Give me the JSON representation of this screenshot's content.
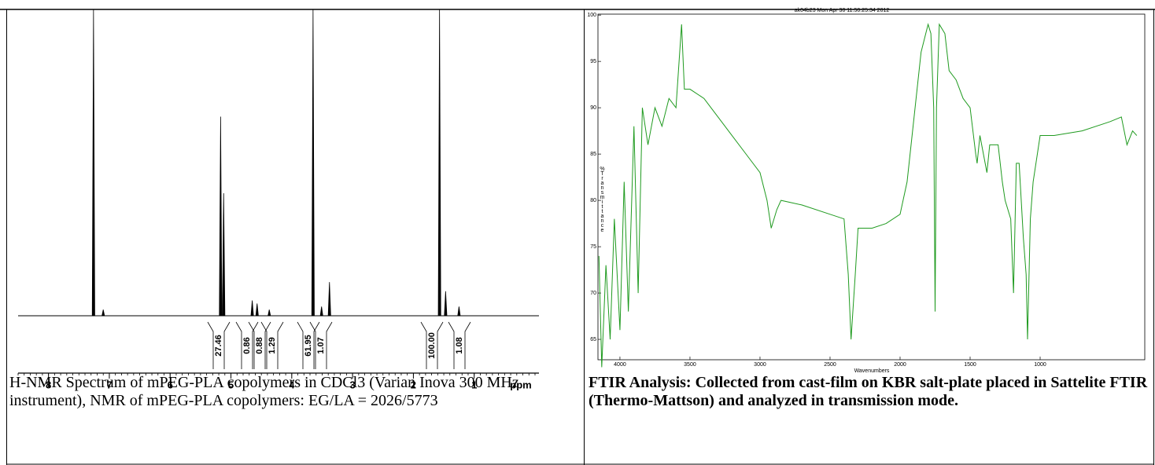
{
  "left": {
    "figure": {
      "type": "nmr",
      "x_label": "ppm",
      "xlim": [
        8.5,
        0
      ],
      "xticks": [
        8,
        7,
        6,
        5,
        4,
        3,
        2,
        1
      ],
      "ylim": [
        0,
        100
      ],
      "color": "#000000",
      "x": [
        7.26,
        7.1,
        5.17,
        5.12,
        4.65,
        4.57,
        4.37,
        3.65,
        3.51,
        3.38,
        1.57,
        1.47,
        1.25
      ],
      "values": [
        100,
        2,
        65,
        40,
        5,
        4,
        2,
        100,
        3,
        11,
        100,
        8,
        3
      ],
      "integrals": [
        "27.46",
        "0.86",
        "0.88",
        "1.29",
        "61.95",
        "1.07",
        "100.00",
        "1.08"
      ]
    },
    "caption": "H-NMR Spectrum of mPEG-PLA copolymers in CDCl3 (Varian Inova 300 MHz instrument), NMR of mPEG-PLA copolymers: EG/LA = 2026/5773"
  },
  "right": {
    "figure": {
      "type": "line",
      "title": "ak04b23   Mon Apr 30 11:50:25:34 2012",
      "x_label": "Wavenumbers",
      "y_label": "%Transmittance",
      "xlim": [
        4157,
        253
      ],
      "xticks": [
        4000,
        3500,
        3000,
        2500,
        2000,
        1500,
        1000
      ],
      "ylim": [
        62.8,
        100.1
      ],
      "yticks": [
        65,
        70,
        75,
        80,
        85,
        90,
        95,
        100
      ],
      "color": "#1f9a1f",
      "x": [
        4150,
        4130,
        4100,
        4070,
        4040,
        4000,
        3970,
        3940,
        3900,
        3870,
        3840,
        3800,
        3750,
        3700,
        3650,
        3600,
        3560,
        3540,
        3500,
        3400,
        3300,
        3200,
        3100,
        3000,
        2950,
        2920,
        2880,
        2850,
        2700,
        2500,
        2400,
        2370,
        2350,
        2320,
        2300,
        2200,
        2100,
        2000,
        1950,
        1900,
        1850,
        1800,
        1780,
        1760,
        1750,
        1740,
        1720,
        1680,
        1650,
        1600,
        1550,
        1500,
        1460,
        1450,
        1430,
        1380,
        1360,
        1300,
        1270,
        1250,
        1210,
        1190,
        1170,
        1150,
        1120,
        1100,
        1090,
        1070,
        1050,
        1000,
        900,
        700,
        500,
        420,
        380,
        340,
        310
      ],
      "values": [
        74,
        62,
        73,
        65,
        78,
        66,
        82,
        68,
        88,
        70,
        90,
        86,
        90,
        88,
        91,
        90,
        99,
        92,
        92,
        91,
        89,
        87,
        85,
        83,
        80,
        77,
        79,
        80,
        79.5,
        78.5,
        78,
        72,
        65,
        72,
        77,
        77,
        77.5,
        78.5,
        82,
        89,
        96,
        99,
        98,
        90,
        68,
        90,
        99,
        98,
        94,
        93,
        91,
        90,
        85,
        84,
        87,
        83,
        86,
        86,
        82,
        80,
        78,
        70,
        84,
        84,
        76,
        72,
        65,
        78,
        82,
        87,
        87,
        87.5,
        88.5,
        89,
        86,
        87.5,
        87
      ]
    },
    "caption": "FTIR Analysis: Collected from cast-film on KBR salt-plate placed in Sattelite FTIR (Thermo-Mattson) and analyzed in transmission mode."
  }
}
